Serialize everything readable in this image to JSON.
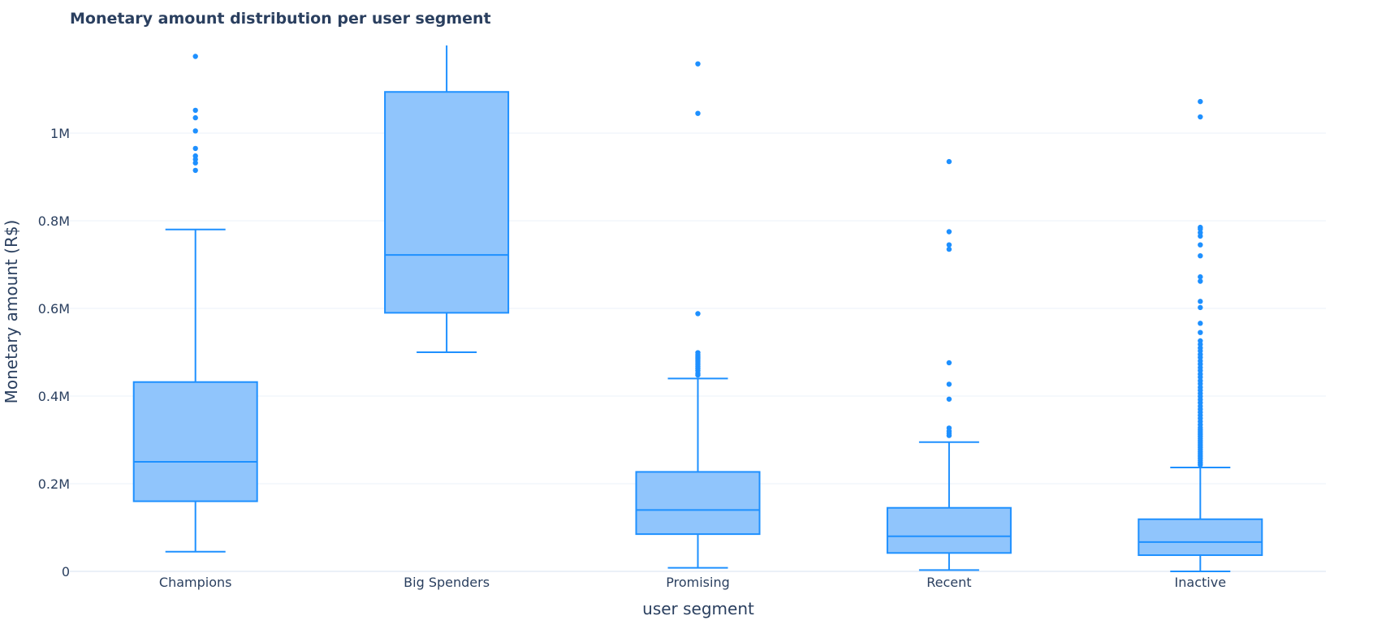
{
  "chart_data": {
    "type": "box",
    "title": "Monetary amount distribution per user segment",
    "xlabel": "user segment",
    "ylabel": "Monetary amount (R$)",
    "ylim": [
      0,
      1200000
    ],
    "yticks": [
      {
        "value": 0,
        "label": "0"
      },
      {
        "value": 200000,
        "label": "0.2M"
      },
      {
        "value": 400000,
        "label": "0.4M"
      },
      {
        "value": 600000,
        "label": "0.6M"
      },
      {
        "value": 800000,
        "label": "0.8M"
      },
      {
        "value": 1000000,
        "label": "1M"
      }
    ],
    "grid": true,
    "color": "#1e90ff",
    "fill_color": "#90c5fc",
    "categories": [
      "Champions",
      "Big Spenders",
      "Promising",
      "Recent",
      "Inactive"
    ],
    "boxes": [
      {
        "category": "Champions",
        "lower_fence": 45000,
        "q1": 160000,
        "median": 250000,
        "q3": 432000,
        "upper_fence": 780000,
        "outliers": [
          915000,
          932000,
          940000,
          948000,
          965000,
          1005000,
          1035000,
          1052000,
          1175000
        ]
      },
      {
        "category": "Big Spenders",
        "lower_fence": 500000,
        "q1": 590000,
        "median": 722000,
        "q3": 1094000,
        "upper_fence": 1200000,
        "outliers": []
      },
      {
        "category": "Promising",
        "lower_fence": 8000,
        "q1": 85000,
        "median": 140000,
        "q3": 227000,
        "upper_fence": 440000,
        "outliers": [
          448000,
          452000,
          458000,
          463000,
          468000,
          473000,
          478000,
          482000,
          486000,
          490000,
          494000,
          499000,
          588000,
          1045000,
          1158000
        ]
      },
      {
        "category": "Recent",
        "lower_fence": 3000,
        "q1": 42000,
        "median": 80000,
        "q3": 145000,
        "upper_fence": 295000,
        "outliers": [
          310000,
          315000,
          320000,
          327000,
          393000,
          427000,
          476000,
          735000,
          745000,
          775000,
          935000
        ]
      },
      {
        "category": "Inactive",
        "lower_fence": 0,
        "q1": 37000,
        "median": 67000,
        "q3": 119000,
        "upper_fence": 237000,
        "outliers": [
          243000,
          248000,
          253000,
          258000,
          263000,
          268000,
          273000,
          278000,
          283000,
          288000,
          293000,
          298000,
          303000,
          308000,
          313000,
          318000,
          323000,
          328000,
          335000,
          342000,
          349000,
          356000,
          363000,
          370000,
          377000,
          385000,
          392000,
          399000,
          406000,
          413000,
          420000,
          428000,
          435000,
          443000,
          450000,
          458000,
          465000,
          473000,
          480000,
          488000,
          495000,
          503000,
          510000,
          518000,
          526000,
          545000,
          566000,
          602000,
          616000,
          662000,
          672000,
          720000,
          745000,
          765000,
          773000,
          781000,
          785000,
          1037000,
          1072000
        ]
      }
    ]
  }
}
